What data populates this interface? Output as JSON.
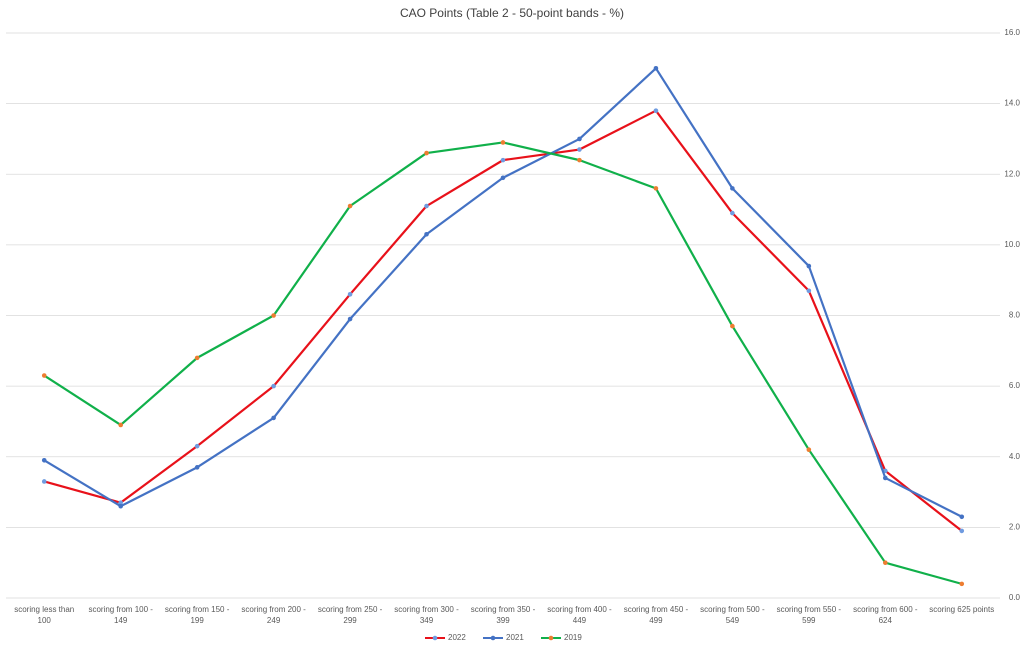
{
  "chart_data": {
    "type": "line",
    "title": "CAO Points (Table 2 - 50-point bands - %)",
    "categories": [
      "scoring less than 100",
      "scoring from 100 - 149",
      "scoring from 150 - 199",
      "scoring from 200 - 249",
      "scoring from 250 - 299",
      "scoring from 300 - 349",
      "scoring from 350 - 399",
      "scoring from 400 - 449",
      "scoring from 450 - 499",
      "scoring from 500 - 549",
      "scoring from 550 - 599",
      "scoring from 600 - 624",
      "scoring 625 points"
    ],
    "series": [
      {
        "name": "2022",
        "color": "#e8111a",
        "marker_color": "#6f9be0",
        "values": [
          3.3,
          2.7,
          4.3,
          6.0,
          8.6,
          11.1,
          12.4,
          12.7,
          13.8,
          10.9,
          8.7,
          3.6,
          1.9
        ]
      },
      {
        "name": "2021",
        "color": "#4472c4",
        "marker_color": "#4472c4",
        "values": [
          3.9,
          2.6,
          3.7,
          5.1,
          7.9,
          10.3,
          11.9,
          13.0,
          15.0,
          11.6,
          9.4,
          3.4,
          2.3
        ]
      },
      {
        "name": "2019",
        "color": "#10b04a",
        "marker_color": "#ed7d31",
        "values": [
          6.3,
          4.9,
          6.8,
          8.0,
          11.1,
          12.6,
          12.9,
          12.4,
          11.6,
          7.7,
          4.2,
          1.0,
          0.4
        ]
      }
    ],
    "ylim": [
      0,
      16
    ],
    "yticks": [
      {
        "value": 0,
        "label": "0.0"
      },
      {
        "value": 2,
        "label": "2.0"
      },
      {
        "value": 4,
        "label": "4.0"
      },
      {
        "value": 6,
        "label": "6.0"
      },
      {
        "value": 8,
        "label": "8.0"
      },
      {
        "value": 10,
        "label": "10.0"
      },
      {
        "value": 12,
        "label": "12.0"
      },
      {
        "value": 14,
        "label": "14.0"
      },
      {
        "value": 16,
        "label": "16.0"
      }
    ],
    "grid": true,
    "legend": "bottom"
  }
}
